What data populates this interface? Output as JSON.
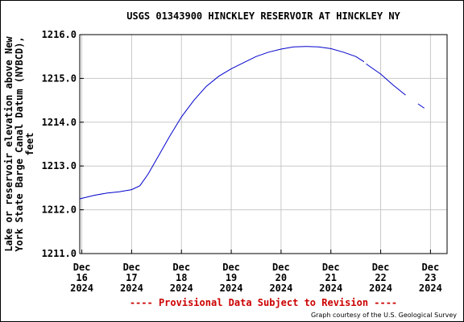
{
  "chart_data": {
    "type": "line",
    "title": "USGS 01343900 HINCKLEY RESERVOIR AT HINCKLEY NY",
    "ylabel_lines": [
      "Lake or reservoir elevation above New",
      "York State Barge Canal Datum (NYBCD),",
      "feet"
    ],
    "xlabel": "",
    "ylim": [
      1211.0,
      1216.0
    ],
    "yticks": [
      "1211.0",
      "1212.0",
      "1213.0",
      "1214.0",
      "1215.0",
      "1216.0"
    ],
    "xlim": [
      "2024-12-15T23:00",
      "2024-12-23T08:00"
    ],
    "xticks": [
      {
        "at": "2024-12-16",
        "lines": [
          "Dec",
          "16",
          "2024"
        ]
      },
      {
        "at": "2024-12-17",
        "lines": [
          "Dec",
          "17",
          "2024"
        ]
      },
      {
        "at": "2024-12-18",
        "lines": [
          "Dec",
          "18",
          "2024"
        ]
      },
      {
        "at": "2024-12-19",
        "lines": [
          "Dec",
          "19",
          "2024"
        ]
      },
      {
        "at": "2024-12-20",
        "lines": [
          "Dec",
          "20",
          "2024"
        ]
      },
      {
        "at": "2024-12-21",
        "lines": [
          "Dec",
          "21",
          "2024"
        ]
      },
      {
        "at": "2024-12-22",
        "lines": [
          "Dec",
          "22",
          "2024"
        ]
      },
      {
        "at": "2024-12-23",
        "lines": [
          "Dec",
          "23",
          "2024"
        ]
      }
    ],
    "grid": true,
    "series": [
      {
        "color": "#0000cc",
        "points": [
          [
            "2024-12-15T23:00",
            1212.25
          ],
          [
            "2024-12-16T06:00",
            1212.33
          ],
          [
            "2024-12-16T12:00",
            1212.38
          ],
          [
            "2024-12-16T18:00",
            1212.41
          ],
          [
            "2024-12-17T00:00",
            1212.46
          ],
          [
            "2024-12-17T04:00",
            1212.55
          ],
          [
            "2024-12-17T08:00",
            1212.82
          ],
          [
            "2024-12-17T12:00",
            1213.15
          ],
          [
            "2024-12-17T18:00",
            1213.65
          ],
          [
            "2024-12-18T00:00",
            1214.12
          ],
          [
            "2024-12-18T06:00",
            1214.5
          ],
          [
            "2024-12-18T12:00",
            1214.82
          ],
          [
            "2024-12-18T18:00",
            1215.05
          ],
          [
            "2024-12-19T00:00",
            1215.22
          ],
          [
            "2024-12-19T06:00",
            1215.36
          ],
          [
            "2024-12-19T12:00",
            1215.5
          ],
          [
            "2024-12-19T18:00",
            1215.6
          ],
          [
            "2024-12-20T00:00",
            1215.67
          ],
          [
            "2024-12-20T06:00",
            1215.72
          ],
          [
            "2024-12-20T12:00",
            1215.73
          ],
          [
            "2024-12-20T18:00",
            1215.72
          ],
          [
            "2024-12-21T00:00",
            1215.68
          ],
          [
            "2024-12-21T06:00",
            1215.6
          ],
          [
            "2024-12-21T12:00",
            1215.5
          ],
          [
            "2024-12-21T16:00",
            1215.38
          ]
        ]
      },
      {
        "color": "#0000cc",
        "points": [
          [
            "2024-12-21T17:00",
            1215.33
          ],
          [
            "2024-12-22T00:00",
            1215.1
          ],
          [
            "2024-12-22T06:00",
            1214.85
          ],
          [
            "2024-12-22T12:00",
            1214.62
          ]
        ]
      },
      {
        "color": "#0000cc",
        "points": [
          [
            "2024-12-22T18:00",
            1214.42
          ],
          [
            "2024-12-22T21:00",
            1214.32
          ]
        ]
      }
    ]
  },
  "footer": {
    "provisional": "---- Provisional Data Subject to Revision ----",
    "courtesy": "Graph courtesy of the U.S. Geological Survey"
  }
}
